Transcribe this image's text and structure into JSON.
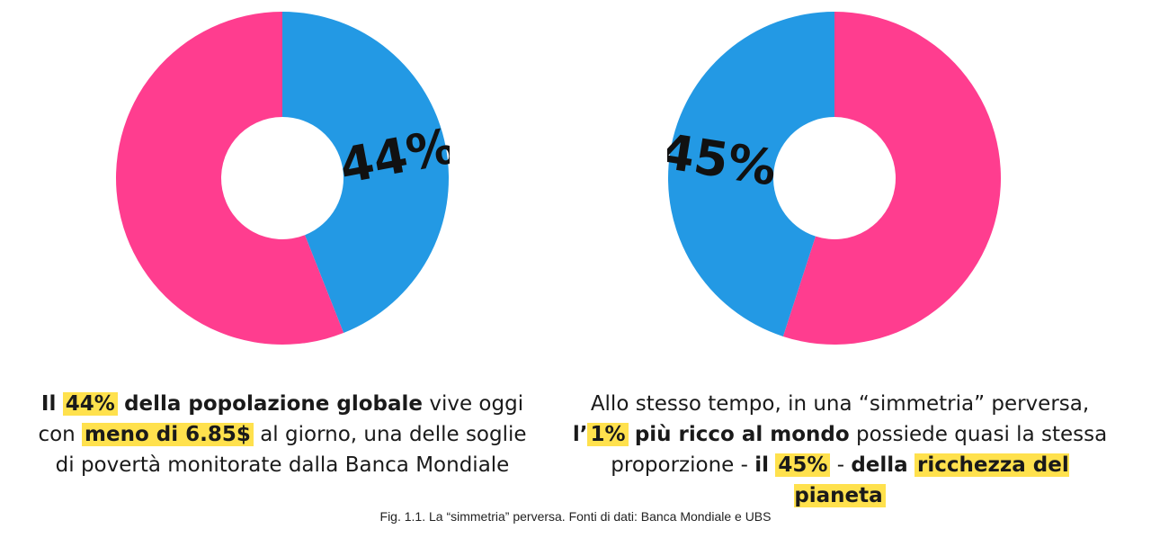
{
  "colors": {
    "blue": "#2399e4",
    "pink": "#ff3d8f",
    "highlight": "#ffe14d"
  },
  "chart_data": [
    {
      "type": "pie",
      "donut": true,
      "slices": [
        {
          "value": 44,
          "color": "#2399e4",
          "label": "44%"
        },
        {
          "value": 56,
          "color": "#ff3d8f"
        }
      ]
    },
    {
      "type": "pie",
      "donut": true,
      "slices": [
        {
          "value": 55,
          "color": "#ff3d8f"
        },
        {
          "value": 45,
          "color": "#2399e4",
          "label": "45%"
        }
      ]
    }
  ],
  "captions": {
    "left": {
      "l1_a": "Il",
      "l1_hl": "44%",
      "l1_b": "della popolazione globale",
      "l1_c": " vive oggi",
      "l2_a": "con",
      "l2_hl": "meno di 6.85$",
      "l2_b": " al giorno, una delle soglie",
      "l3": "di povertà monitorate dalla Banca Mondiale"
    },
    "right": {
      "l1": "Allo stesso tempo, in una “simmetria” perversa,",
      "l2_a": "l’",
      "l2_hl": "1%",
      "l2_b": "più ricco al mondo",
      "l2_c": " possiede quasi la stessa",
      "l3_a": "proporzione - ",
      "l3_b": "il",
      "l3_hl1": "45%",
      "l3_c": " - ",
      "l3_d": "della",
      "l3_hl2": "ricchezza del pianeta"
    }
  },
  "footnote": "Fig. 1.1. La “simmetria” perversa. Fonti di dati: Banca Mondiale e UBS"
}
